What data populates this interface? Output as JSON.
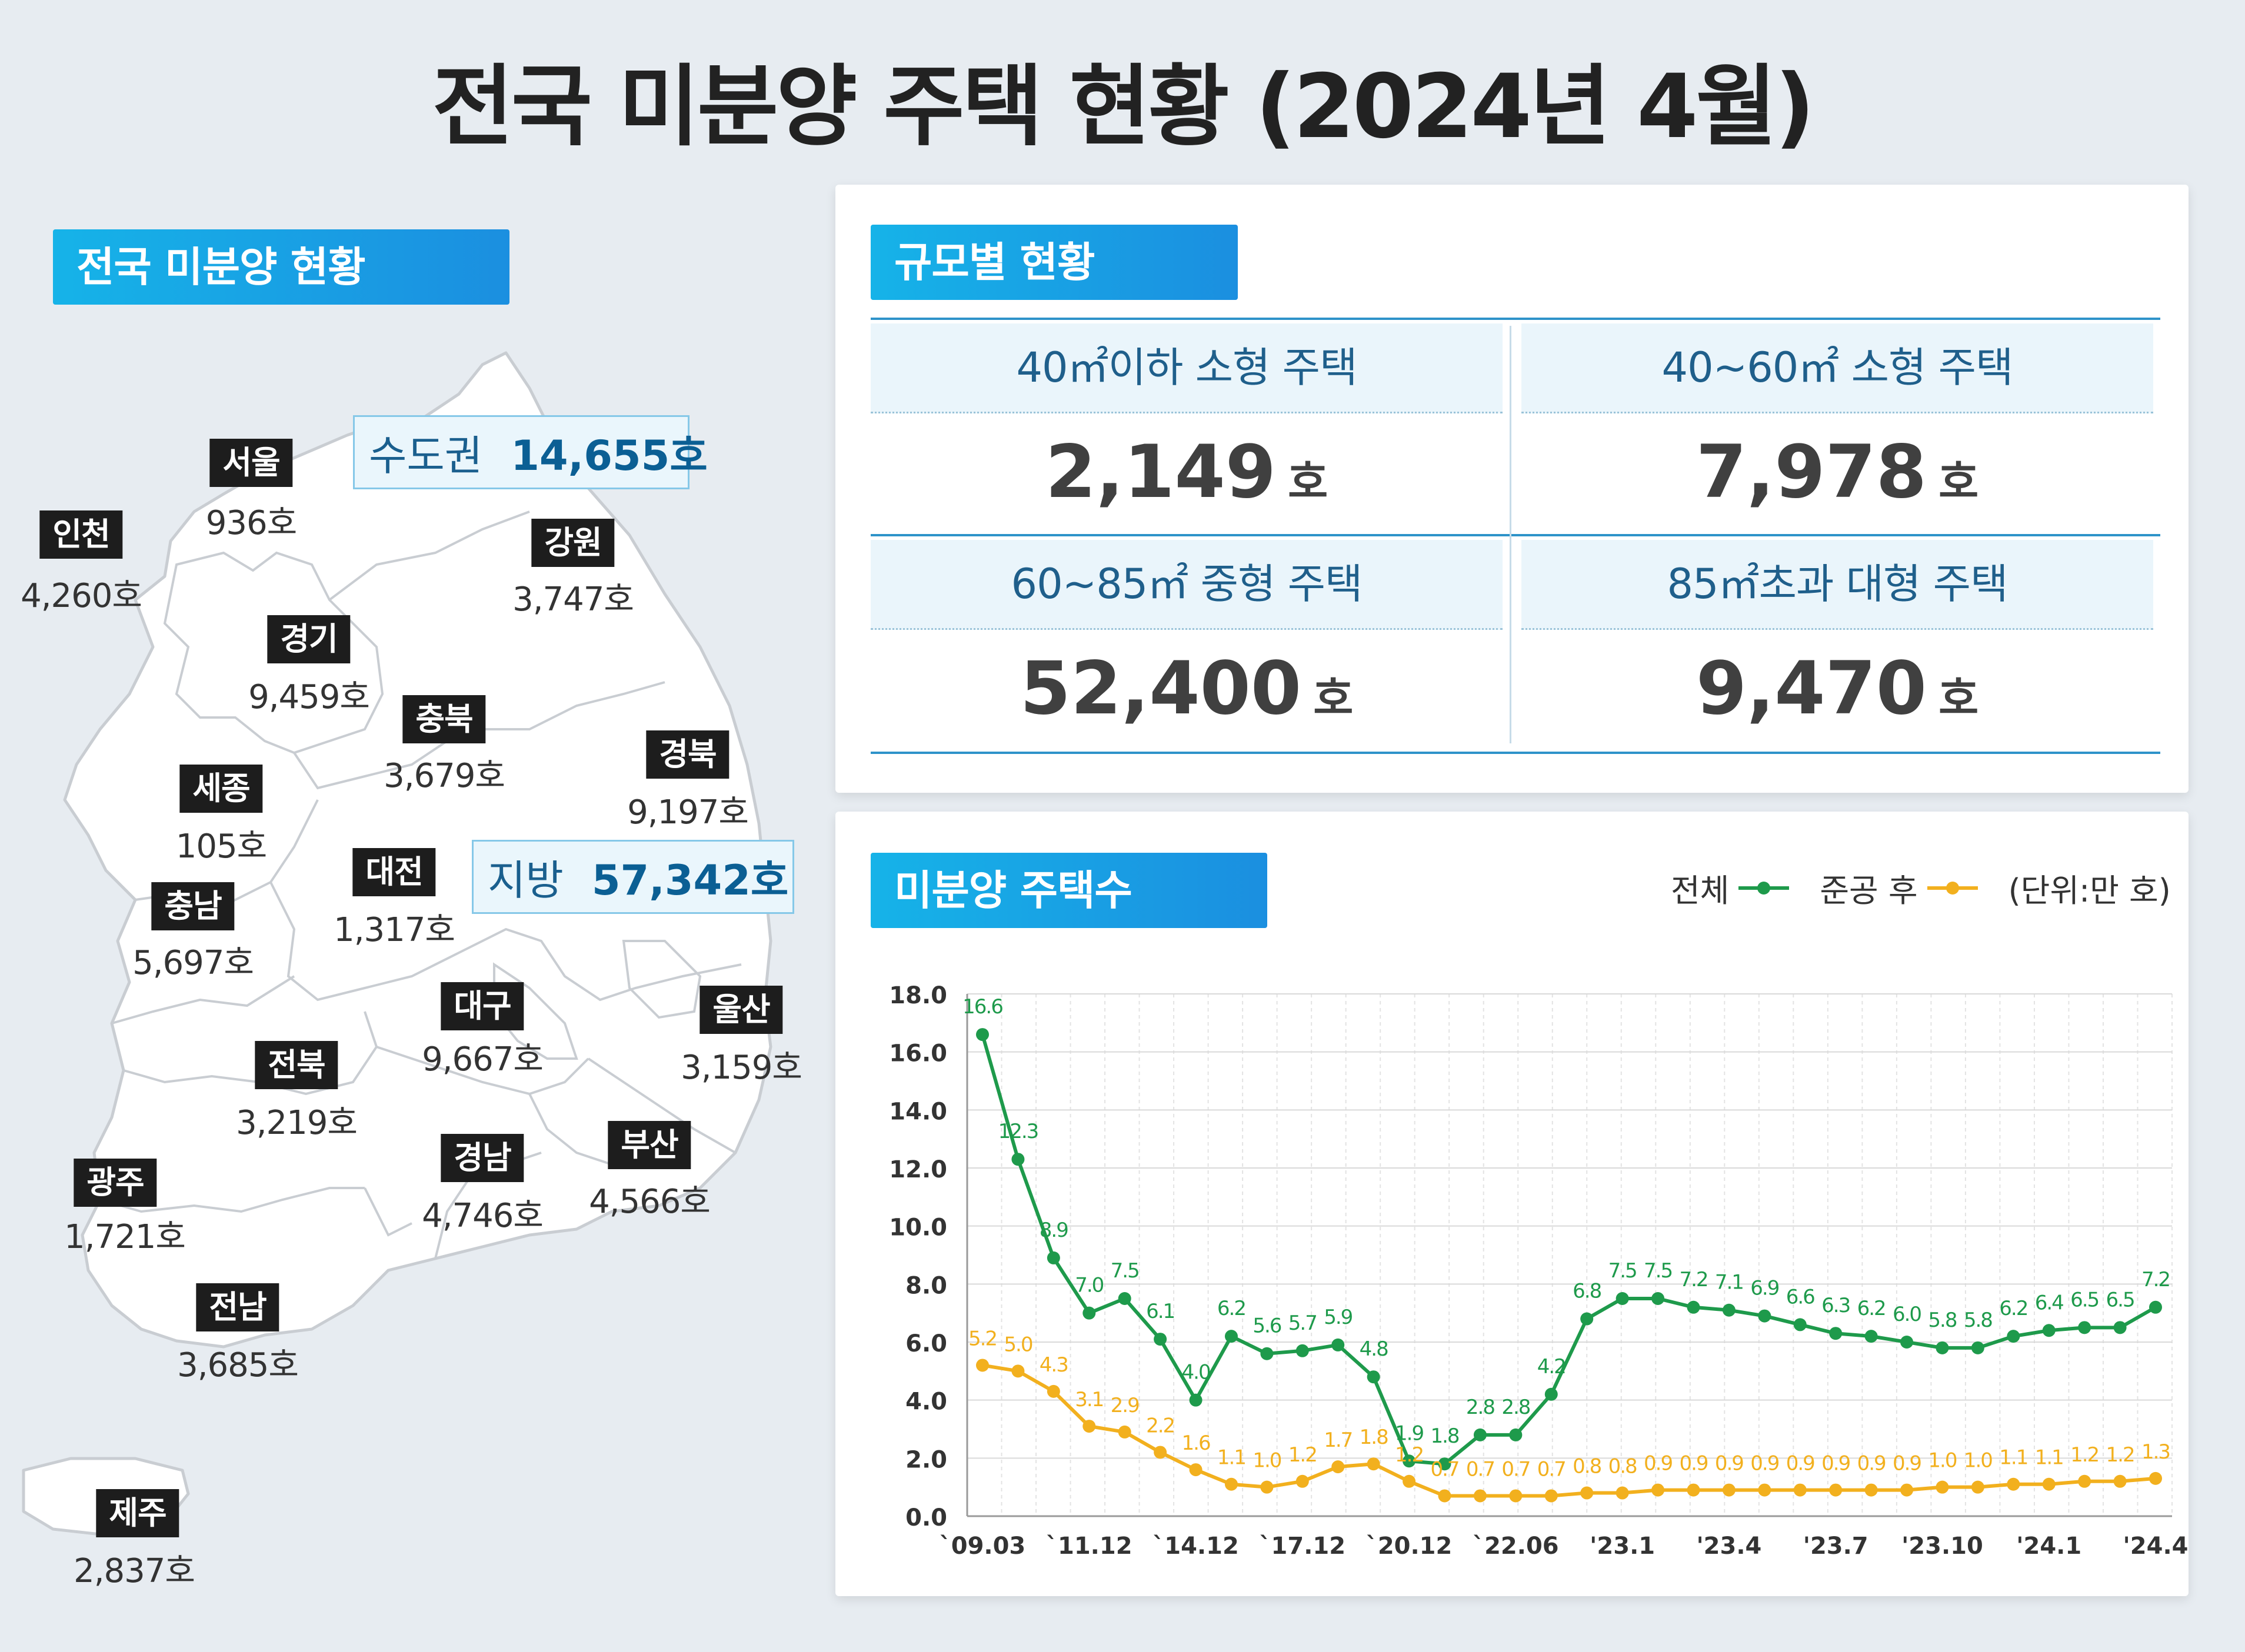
{
  "title": "전국 미분양 주택 현황  (2024년 4월)",
  "map": {
    "tag": "전국 미분양 현황",
    "regions": [
      {
        "name": "서울",
        "value": "936호"
      },
      {
        "name": "인천",
        "value": "4,260호"
      },
      {
        "name": "강원",
        "value": "3,747호"
      },
      {
        "name": "경기",
        "value": "9,459호"
      },
      {
        "name": "충북",
        "value": "3,679호"
      },
      {
        "name": "경북",
        "value": "9,197호"
      },
      {
        "name": "세종",
        "value": "105호"
      },
      {
        "name": "대전",
        "value": "1,317호"
      },
      {
        "name": "충남",
        "value": "5,697호"
      },
      {
        "name": "대구",
        "value": "9,667호"
      },
      {
        "name": "울산",
        "value": "3,159호"
      },
      {
        "name": "전북",
        "value": "3,219호"
      },
      {
        "name": "부산",
        "value": "4,566호"
      },
      {
        "name": "경남",
        "value": "4,746호"
      },
      {
        "name": "광주",
        "value": "1,721호"
      },
      {
        "name": "전남",
        "value": "3,685호"
      },
      {
        "name": "제주",
        "value": "2,837호"
      }
    ],
    "areas": [
      {
        "name": "수도권",
        "value": "14,655호"
      },
      {
        "name": "지방",
        "value": "57,342호"
      }
    ]
  },
  "size": {
    "tag": "규모별 현황",
    "unit": "호",
    "cells": [
      {
        "label": "40㎡이하 소형 주택",
        "value": "2,149"
      },
      {
        "label": "40~60㎡ 소형 주택",
        "value": "7,978"
      },
      {
        "label": "60~85㎡ 중형 주택",
        "value": "52,400"
      },
      {
        "label": "85㎡초과 대형 주택",
        "value": "9,470"
      }
    ]
  },
  "chart": {
    "tag": "미분양 주택수",
    "legend_total": "전체",
    "legend_completed": "준공 후",
    "unit_note": "(단위:만 호)",
    "colors": {
      "total": "#1e9a4b",
      "completed": "#f2b01e"
    }
  },
  "chart_data": {
    "type": "line",
    "ylim": [
      0,
      18
    ],
    "yticks": [
      "0.0",
      "2.0",
      "4.0",
      "6.0",
      "8.0",
      "10.0",
      "12.0",
      "14.0",
      "16.0",
      "18.0"
    ],
    "x_tick_labels": [
      {
        "i": 0,
        "label": "`09.03"
      },
      {
        "i": 3,
        "label": "`11.12"
      },
      {
        "i": 6,
        "label": "`14.12"
      },
      {
        "i": 9,
        "label": "`17.12"
      },
      {
        "i": 12,
        "label": "`20.12"
      },
      {
        "i": 15,
        "label": "`22.06"
      },
      {
        "i": 18,
        "label": "'23.1"
      },
      {
        "i": 21,
        "label": "'23.4"
      },
      {
        "i": 24,
        "label": "'23.7"
      },
      {
        "i": 27,
        "label": "'23.10"
      },
      {
        "i": 30,
        "label": "'24.1"
      },
      {
        "i": 33,
        "label": "'24.4"
      }
    ],
    "series": [
      {
        "name": "전체",
        "values": [
          16.6,
          12.3,
          8.9,
          7.0,
          7.5,
          6.1,
          4.0,
          6.2,
          5.6,
          5.7,
          5.9,
          4.8,
          1.9,
          1.8,
          2.8,
          2.8,
          4.2,
          6.8,
          7.5,
          7.5,
          7.2,
          7.1,
          6.9,
          6.6,
          6.3,
          6.2,
          6.0,
          5.8,
          5.8,
          6.2,
          6.4,
          6.5,
          6.5,
          7.2
        ]
      },
      {
        "name": "준공 후",
        "values": [
          5.2,
          5.0,
          4.3,
          3.1,
          2.9,
          2.2,
          1.6,
          1.1,
          1.0,
          1.2,
          1.7,
          1.8,
          1.2,
          0.7,
          0.7,
          0.7,
          0.7,
          0.8,
          0.8,
          0.9,
          0.9,
          0.9,
          0.9,
          0.9,
          0.9,
          0.9,
          0.9,
          1.0,
          1.0,
          1.1,
          1.1,
          1.2,
          1.2,
          1.3
        ]
      }
    ]
  }
}
